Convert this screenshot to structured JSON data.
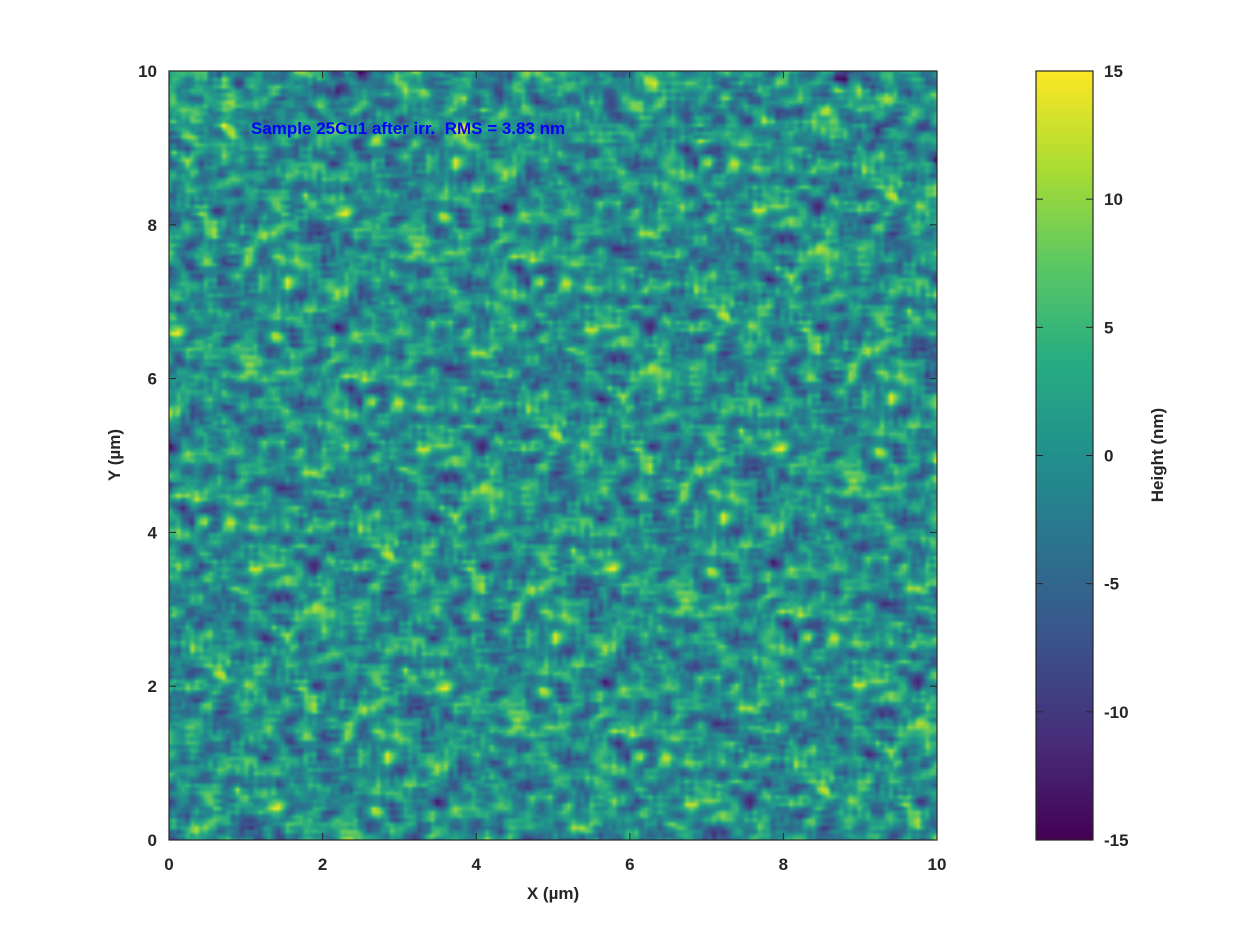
{
  "chart_data": {
    "type": "heatmap",
    "title": "",
    "annotation": "Sample 25Cu1 after irr.  RMS = 3.83 nm",
    "xlabel": "X (µm)",
    "ylabel": "Y (µm)",
    "xlim": [
      0,
      10
    ],
    "ylim": [
      0,
      10
    ],
    "xticks": [
      "0",
      "2",
      "4",
      "6",
      "8",
      "10"
    ],
    "yticks": [
      "0",
      "2",
      "4",
      "6",
      "8",
      "10"
    ],
    "colorbar": {
      "label": "Height (nm)",
      "range": [
        -15,
        15
      ],
      "ticks": [
        "-15",
        "-10",
        "-5",
        "0",
        "5",
        "10",
        "15"
      ],
      "colormap": "viridis"
    },
    "rms_nm": 3.83,
    "grid": false,
    "annotation_color": "#0000ff"
  }
}
